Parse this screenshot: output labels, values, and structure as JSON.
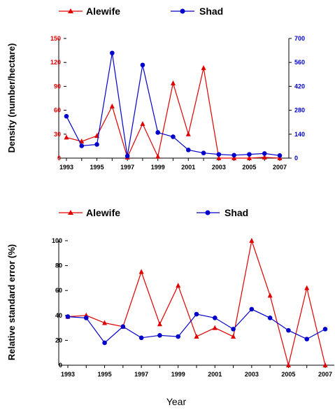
{
  "chart_data": [
    {
      "type": "line",
      "title": "",
      "xlabel": "",
      "ylabel": "Density (number/hectare)",
      "x": [
        1993,
        1994,
        1995,
        1996,
        1997,
        1998,
        1999,
        2000,
        2001,
        2002,
        2003,
        2004,
        2005,
        2006,
        2007
      ],
      "x_ticks": [
        "1993",
        "1995",
        "1997",
        "1999",
        "2001",
        "2003",
        "2005",
        "2007"
      ],
      "left_axis": {
        "color": "#e00000",
        "ylim": [
          0,
          150
        ],
        "ticks": [
          "0",
          "30",
          "60",
          "90",
          "120",
          "150"
        ]
      },
      "right_axis": {
        "color": "#0000cc",
        "ylim": [
          0,
          700
        ],
        "ticks": [
          "0",
          "140",
          "280",
          "420",
          "560",
          "700"
        ]
      },
      "legend_placement": "top",
      "series": [
        {
          "name": "Alewife",
          "axis": "left",
          "color": "#e00000",
          "marker": "triangle",
          "values": [
            26,
            21,
            28,
            65,
            1,
            43,
            2,
            94,
            30,
            113,
            0,
            0,
            0,
            1,
            0
          ]
        },
        {
          "name": "Shad",
          "axis": "right",
          "color": "#0000cc",
          "marker": "circle",
          "values": [
            245,
            72,
            80,
            615,
            12,
            545,
            150,
            125,
            48,
            30,
            22,
            17,
            22,
            27,
            15
          ]
        }
      ]
    },
    {
      "type": "line",
      "title": "",
      "xlabel": "Year",
      "ylabel": "Relative standard error (%)",
      "x": [
        1993,
        1994,
        1995,
        1996,
        1997,
        1998,
        1999,
        2000,
        2001,
        2002,
        2003,
        2004,
        2005,
        2006,
        2007
      ],
      "x_ticks": [
        "1993",
        "1995",
        "1997",
        "1999",
        "2001",
        "2003",
        "2005",
        "2007"
      ],
      "left_axis": {
        "color": "#000000",
        "ylim": [
          0,
          100
        ],
        "ticks": [
          "0",
          "20",
          "40",
          "60",
          "80",
          "100"
        ]
      },
      "legend_placement": "top",
      "series": [
        {
          "name": "Alewife",
          "axis": "left",
          "color": "#e00000",
          "marker": "triangle",
          "values": [
            39,
            40,
            34,
            31,
            75,
            33,
            64,
            23,
            30,
            23,
            100,
            56,
            0,
            62,
            0
          ]
        },
        {
          "name": "Shad",
          "axis": "left",
          "color": "#0000cc",
          "marker": "circle",
          "values": [
            39,
            38,
            18,
            31,
            22,
            24,
            23,
            41,
            38,
            29,
            45,
            38,
            28,
            21,
            29
          ]
        }
      ]
    }
  ]
}
